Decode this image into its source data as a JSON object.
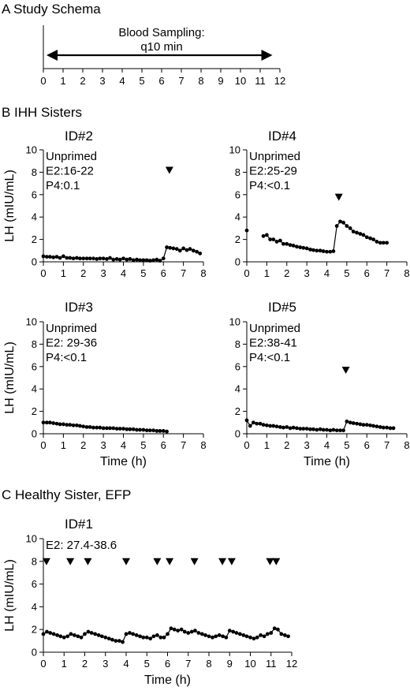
{
  "sections": {
    "a": "A  Study Schema",
    "b": "B  IHH Sisters",
    "c": "C  Healthy Sister, EFP"
  },
  "schema": {
    "label_line1": "Blood Sampling:",
    "label_line2": "q10 min",
    "range": [
      0,
      11.5
    ],
    "ticks": [
      0,
      1,
      2,
      3,
      4,
      5,
      6,
      7,
      8,
      9,
      10,
      11,
      12
    ]
  },
  "chart_data": [
    {
      "type": "line",
      "id_label": "ID#2",
      "annotations": [
        "Unprimed",
        "E2:16-22",
        "P4:0.1"
      ],
      "xlabel": "",
      "ylabel": "LH (mIU/mL)",
      "xlim": [
        0,
        8
      ],
      "ylim": [
        0,
        10
      ],
      "xticks": [
        0,
        1,
        2,
        3,
        4,
        5,
        6,
        7,
        8
      ],
      "yticks": [
        0,
        2,
        4,
        6,
        8,
        10
      ],
      "markers_y": 8.2,
      "markers_x": [
        6.3
      ],
      "x": [
        0,
        0.17,
        0.33,
        0.5,
        0.67,
        0.83,
        1,
        1.17,
        1.33,
        1.5,
        1.67,
        1.83,
        2,
        2.17,
        2.33,
        2.5,
        2.67,
        2.83,
        3,
        3.17,
        3.33,
        3.5,
        3.67,
        3.83,
        4,
        4.17,
        4.33,
        4.5,
        4.67,
        4.83,
        5,
        5.17,
        5.33,
        5.5,
        5.67,
        5.83,
        6,
        6.17,
        6.33,
        6.5,
        6.67,
        6.83,
        7,
        7.17,
        7.33,
        7.5,
        7.67,
        7.83
      ],
      "y": [
        0.5,
        0.45,
        0.45,
        0.4,
        0.45,
        0.35,
        0.5,
        0.35,
        0.35,
        0.3,
        0.35,
        0.3,
        0.3,
        0.3,
        0.3,
        0.3,
        0.25,
        0.3,
        0.3,
        0.25,
        0.35,
        0.2,
        0.25,
        0.2,
        0.3,
        0.2,
        0.25,
        0.15,
        0.2,
        0.15,
        0.15,
        0.15,
        0.1,
        0.15,
        0.2,
        0.1,
        0.3,
        1.3,
        1.25,
        1.2,
        1.15,
        1.0,
        1.2,
        1.05,
        1.15,
        1.0,
        0.9,
        0.75
      ]
    },
    {
      "type": "line",
      "id_label": "ID#4",
      "annotations": [
        "Unprimed",
        "E2:25-29",
        "P4:<0.1"
      ],
      "xlabel": "",
      "ylabel": "",
      "xlim": [
        0,
        8
      ],
      "ylim": [
        0,
        10
      ],
      "xticks": [
        0,
        1,
        2,
        3,
        4,
        5,
        6,
        7,
        8
      ],
      "yticks": [
        0,
        2,
        4,
        6,
        8,
        10
      ],
      "markers_y": 5.8,
      "markers_x": [
        4.6
      ],
      "x": [
        0,
        0.83,
        1,
        1.17,
        1.33,
        1.5,
        1.67,
        1.83,
        2,
        2.17,
        2.33,
        2.5,
        2.67,
        2.83,
        3,
        3.17,
        3.33,
        3.5,
        3.67,
        3.83,
        4,
        4.17,
        4.33,
        4.5,
        4.67,
        4.83,
        5,
        5.17,
        5.33,
        5.5,
        5.67,
        5.83,
        6,
        6.17,
        6.33,
        6.5,
        6.67,
        6.83,
        7
      ],
      "y": [
        2.8,
        2.3,
        2.4,
        2.0,
        2.0,
        1.8,
        1.9,
        1.6,
        1.6,
        1.5,
        1.45,
        1.35,
        1.3,
        1.25,
        1.2,
        1.1,
        1.05,
        1.0,
        1.0,
        0.95,
        0.9,
        0.9,
        0.95,
        3.2,
        3.6,
        3.5,
        3.2,
        3.0,
        2.7,
        2.6,
        2.5,
        2.4,
        2.2,
        2.1,
        2.0,
        1.8,
        1.7,
        1.7,
        1.7
      ]
    },
    {
      "type": "line",
      "id_label": "ID#3",
      "annotations": [
        "Unprimed",
        "E2: 29-36",
        "P4:<0.1"
      ],
      "xlabel": "Time (h)",
      "ylabel": "LH (mIU/mL)",
      "xlim": [
        0,
        8
      ],
      "ylim": [
        0,
        10
      ],
      "xticks": [
        0,
        1,
        2,
        3,
        4,
        5,
        6,
        7,
        8
      ],
      "yticks": [
        0,
        2,
        4,
        6,
        8,
        10
      ],
      "markers_y": null,
      "markers_x": [],
      "x": [
        0,
        0.17,
        0.33,
        0.5,
        0.67,
        0.83,
        1,
        1.17,
        1.33,
        1.5,
        1.67,
        1.83,
        2,
        2.17,
        2.33,
        2.5,
        2.67,
        2.83,
        3,
        3.17,
        3.33,
        3.5,
        3.67,
        3.83,
        4,
        4.17,
        4.33,
        4.5,
        4.67,
        4.83,
        5,
        5.17,
        5.33,
        5.5,
        5.67,
        5.83,
        6,
        6.17
      ],
      "y": [
        1.0,
        1.0,
        1.0,
        0.95,
        0.9,
        0.85,
        0.85,
        0.8,
        0.8,
        0.75,
        0.75,
        0.7,
        0.65,
        0.6,
        0.6,
        0.55,
        0.55,
        0.55,
        0.5,
        0.5,
        0.5,
        0.5,
        0.45,
        0.45,
        0.45,
        0.4,
        0.4,
        0.4,
        0.35,
        0.35,
        0.35,
        0.3,
        0.3,
        0.3,
        0.25,
        0.25,
        0.25,
        0.2
      ]
    },
    {
      "type": "line",
      "id_label": "ID#5",
      "annotations": [
        "Unprimed",
        "E2:38-41",
        "P4:<0.1"
      ],
      "xlabel": "Time (h)",
      "ylabel": "",
      "xlim": [
        0,
        8
      ],
      "ylim": [
        0,
        10
      ],
      "xticks": [
        0,
        1,
        2,
        3,
        4,
        5,
        6,
        7,
        8
      ],
      "yticks": [
        0,
        2,
        4,
        6,
        8,
        10
      ],
      "markers_y": 5.7,
      "markers_x": [
        4.95
      ],
      "x": [
        0,
        0.17,
        0.33,
        0.5,
        0.67,
        0.83,
        1,
        1.17,
        1.33,
        1.5,
        1.67,
        1.83,
        2,
        2.17,
        2.33,
        2.5,
        2.67,
        2.83,
        3,
        3.17,
        3.33,
        3.5,
        3.67,
        3.83,
        4,
        4.17,
        4.33,
        4.5,
        4.67,
        4.83,
        5,
        5.17,
        5.33,
        5.5,
        5.67,
        5.83,
        6,
        6.17,
        6.33,
        6.5,
        6.67,
        6.83,
        7,
        7.17,
        7.33
      ],
      "y": [
        1.2,
        0.7,
        1.0,
        0.9,
        0.9,
        0.8,
        0.75,
        0.7,
        0.7,
        0.65,
        0.6,
        0.55,
        0.6,
        0.5,
        0.55,
        0.5,
        0.45,
        0.45,
        0.45,
        0.4,
        0.4,
        0.35,
        0.4,
        0.35,
        0.35,
        0.3,
        0.35,
        0.3,
        0.3,
        0.3,
        1.1,
        1.0,
        0.95,
        0.9,
        0.85,
        0.8,
        0.8,
        0.75,
        0.7,
        0.65,
        0.6,
        0.55,
        0.55,
        0.5,
        0.5
      ]
    },
    {
      "type": "line",
      "id_label": "ID#1",
      "annotations": [
        "E2: 27.4-38.6"
      ],
      "xlabel": "Time (h)",
      "ylabel": "LH (mIU/mL)",
      "xlim": [
        0,
        12
      ],
      "ylim": [
        0,
        10
      ],
      "xticks": [
        0,
        1,
        2,
        3,
        4,
        5,
        6,
        7,
        8,
        9,
        10,
        11,
        12
      ],
      "yticks": [
        0,
        2,
        4,
        6,
        8,
        10
      ],
      "markers_y": 8.0,
      "markers_x": [
        0.15,
        1.3,
        2.15,
        4.0,
        5.5,
        6.1,
        7.3,
        8.65,
        9.1,
        10.95,
        11.25
      ],
      "x": [
        0,
        0.17,
        0.33,
        0.5,
        0.67,
        0.83,
        1,
        1.17,
        1.33,
        1.5,
        1.67,
        1.83,
        2,
        2.17,
        2.33,
        2.5,
        2.67,
        2.83,
        3,
        3.17,
        3.33,
        3.5,
        3.67,
        3.83,
        4,
        4.17,
        4.33,
        4.5,
        4.67,
        4.83,
        5,
        5.17,
        5.33,
        5.5,
        5.67,
        5.83,
        6,
        6.17,
        6.33,
        6.5,
        6.67,
        6.83,
        7,
        7.17,
        7.33,
        7.5,
        7.67,
        7.83,
        8,
        8.17,
        8.33,
        8.5,
        8.67,
        8.83,
        9,
        9.17,
        9.33,
        9.5,
        9.67,
        9.83,
        10,
        10.17,
        10.33,
        10.5,
        10.67,
        10.83,
        11,
        11.17,
        11.33,
        11.5,
        11.67,
        11.83
      ],
      "y": [
        1.6,
        1.8,
        1.7,
        1.6,
        1.5,
        1.4,
        1.3,
        1.4,
        1.6,
        1.5,
        1.4,
        1.3,
        1.6,
        1.8,
        1.7,
        1.6,
        1.5,
        1.4,
        1.3,
        1.2,
        1.1,
        1.0,
        1.0,
        0.9,
        1.6,
        1.7,
        1.6,
        1.5,
        1.4,
        1.3,
        1.3,
        1.2,
        1.4,
        1.5,
        1.3,
        1.3,
        1.6,
        2.1,
        2.0,
        1.9,
        2.0,
        1.8,
        1.7,
        1.8,
        1.9,
        1.7,
        1.6,
        1.5,
        1.4,
        1.3,
        1.4,
        1.5,
        1.4,
        1.3,
        1.9,
        1.8,
        1.7,
        1.6,
        1.5,
        1.4,
        1.3,
        1.2,
        1.3,
        1.5,
        1.4,
        1.6,
        1.7,
        2.1,
        2.0,
        1.6,
        1.5,
        1.4
      ]
    }
  ]
}
